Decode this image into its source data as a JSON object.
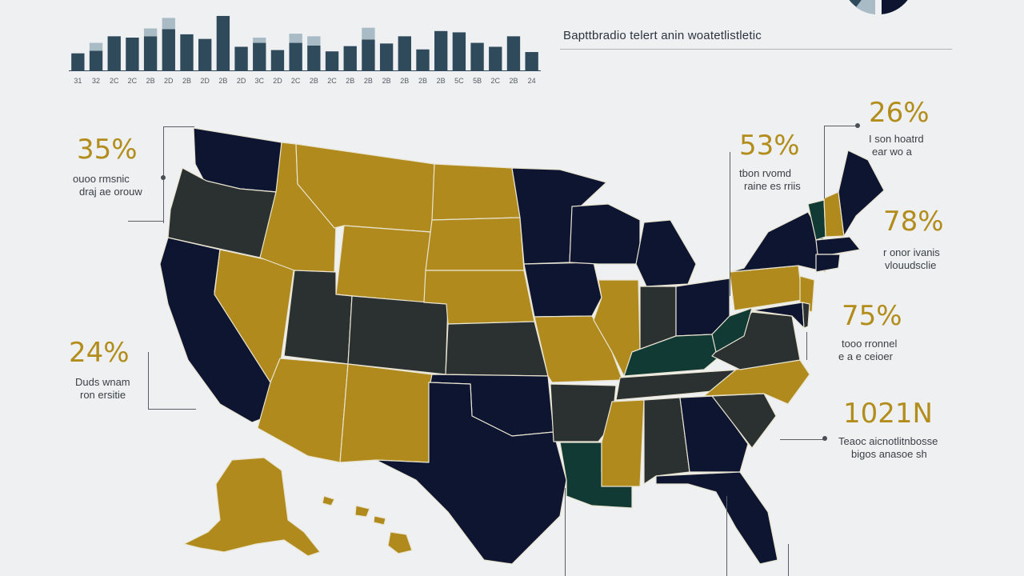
{
  "header": {
    "title": "Bapttbradio telert anin woatetlistletic"
  },
  "top_chart": {
    "type": "bar",
    "categories": [
      "31",
      "32",
      "2C",
      "2C",
      "2B",
      "2D",
      "2B",
      "2D",
      "2B",
      "2D",
      "3C",
      "2D",
      "2C",
      "2B",
      "2C",
      "2B",
      "2B",
      "2B",
      "2B",
      "2B",
      "2B",
      "5C",
      "5B",
      "2C",
      "2B",
      "24"
    ],
    "series": [
      {
        "values": [
          26,
          30,
          52,
          50,
          52,
          63,
          55,
          48,
          83,
          36,
          42,
          31,
          42,
          38,
          29,
          37,
          47,
          41,
          52,
          32,
          60,
          58,
          42,
          36,
          52,
          28
        ]
      },
      {
        "values": [
          0,
          12,
          0,
          0,
          12,
          17,
          0,
          0,
          0,
          0,
          8,
          0,
          14,
          14,
          0,
          0,
          18,
          0,
          0,
          0,
          0,
          0,
          0,
          0,
          0,
          0
        ]
      }
    ],
    "colors": [
      "#2f4a5b",
      "#a9bcc6"
    ]
  },
  "stats": [
    {
      "pct": "35%",
      "line1": "ouoo rmsnic",
      "line2": "draj ae orouw"
    },
    {
      "pct": "24%",
      "line1": "Duds wnam",
      "line2": "ron ersitie"
    },
    {
      "pct": "53%",
      "line1": "tbon rvomd",
      "line2": "raine es rriis"
    },
    {
      "pct": "26%",
      "line1": "I son  hoatrd",
      "line2": "ear wo a"
    },
    {
      "pct": "78%",
      "line1": "r onor ivanis",
      "line2": "vlouudsclie"
    },
    {
      "pct": "75%",
      "line1": "tooo rronnel",
      "line2": "e a e ceioer"
    },
    {
      "pct": "1021N",
      "line1": "Teaoc aicnotlitnbosse",
      "line2": "bigos anasoe sh"
    }
  ],
  "map": {
    "colors": {
      "navy": "#0d1530",
      "gold": "#b08a1c",
      "charcoal": "#2b3130",
      "green": "#123a34",
      "background": "#eef0f1"
    }
  }
}
